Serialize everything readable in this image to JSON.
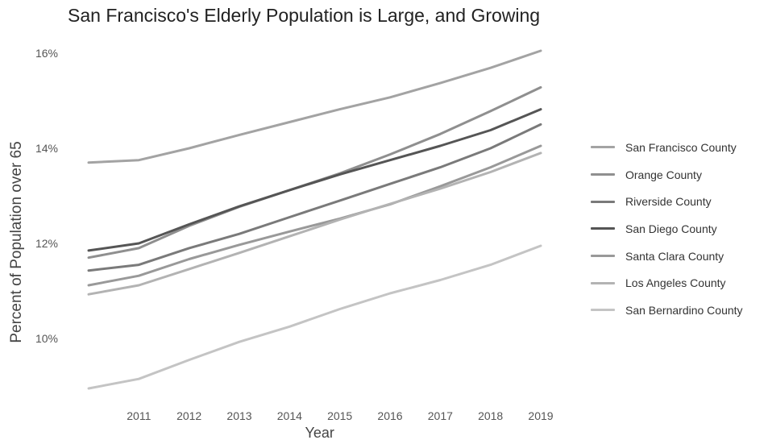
{
  "chart_data": {
    "type": "line",
    "title": "San Francisco's Elderly Population is Large, and Growing",
    "xlabel": "Year",
    "ylabel": "Percent of Population over 65",
    "x": [
      2010,
      2011,
      2012,
      2013,
      2014,
      2015,
      2016,
      2017,
      2018,
      2019
    ],
    "x_ticks": [
      "2011",
      "2012",
      "2013",
      "2014",
      "2015",
      "2016",
      "2017",
      "2018",
      "2019"
    ],
    "y_ticks": [
      "10%",
      "12%",
      "14%",
      "16%"
    ],
    "xlim": [
      2010,
      2019
    ],
    "ylim": [
      8.9,
      16.1
    ],
    "grid": false,
    "legend_position": "right",
    "series": [
      {
        "name": "San Francisco County",
        "color": "#a3a3a3",
        "values": [
          13.7,
          13.75,
          14.0,
          14.28,
          14.55,
          14.82,
          15.07,
          15.37,
          15.69,
          16.05
        ]
      },
      {
        "name": "Orange County",
        "color": "#8f8f8f",
        "values": [
          11.7,
          11.9,
          12.37,
          12.77,
          13.12,
          13.47,
          13.87,
          14.3,
          14.78,
          15.28
        ]
      },
      {
        "name": "Riverside County",
        "color": "#7a7a7a",
        "values": [
          11.43,
          11.55,
          11.9,
          12.2,
          12.55,
          12.9,
          13.25,
          13.6,
          14.0,
          14.5
        ]
      },
      {
        "name": "San Diego County",
        "color": "#555555",
        "values": [
          11.85,
          12.0,
          12.4,
          12.78,
          13.12,
          13.45,
          13.75,
          14.05,
          14.38,
          14.82
        ]
      },
      {
        "name": "Santa Clara County",
        "color": "#999999",
        "values": [
          11.12,
          11.32,
          11.67,
          11.97,
          12.25,
          12.52,
          12.82,
          13.2,
          13.6,
          14.05
        ]
      },
      {
        "name": "Los Angeles County",
        "color": "#b3b3b3",
        "values": [
          10.93,
          11.12,
          11.46,
          11.8,
          12.15,
          12.5,
          12.83,
          13.15,
          13.5,
          13.9
        ]
      },
      {
        "name": "San Bernardino County",
        "color": "#c4c4c4",
        "values": [
          8.95,
          9.15,
          9.55,
          9.93,
          10.25,
          10.62,
          10.95,
          11.23,
          11.55,
          11.95
        ]
      }
    ]
  }
}
